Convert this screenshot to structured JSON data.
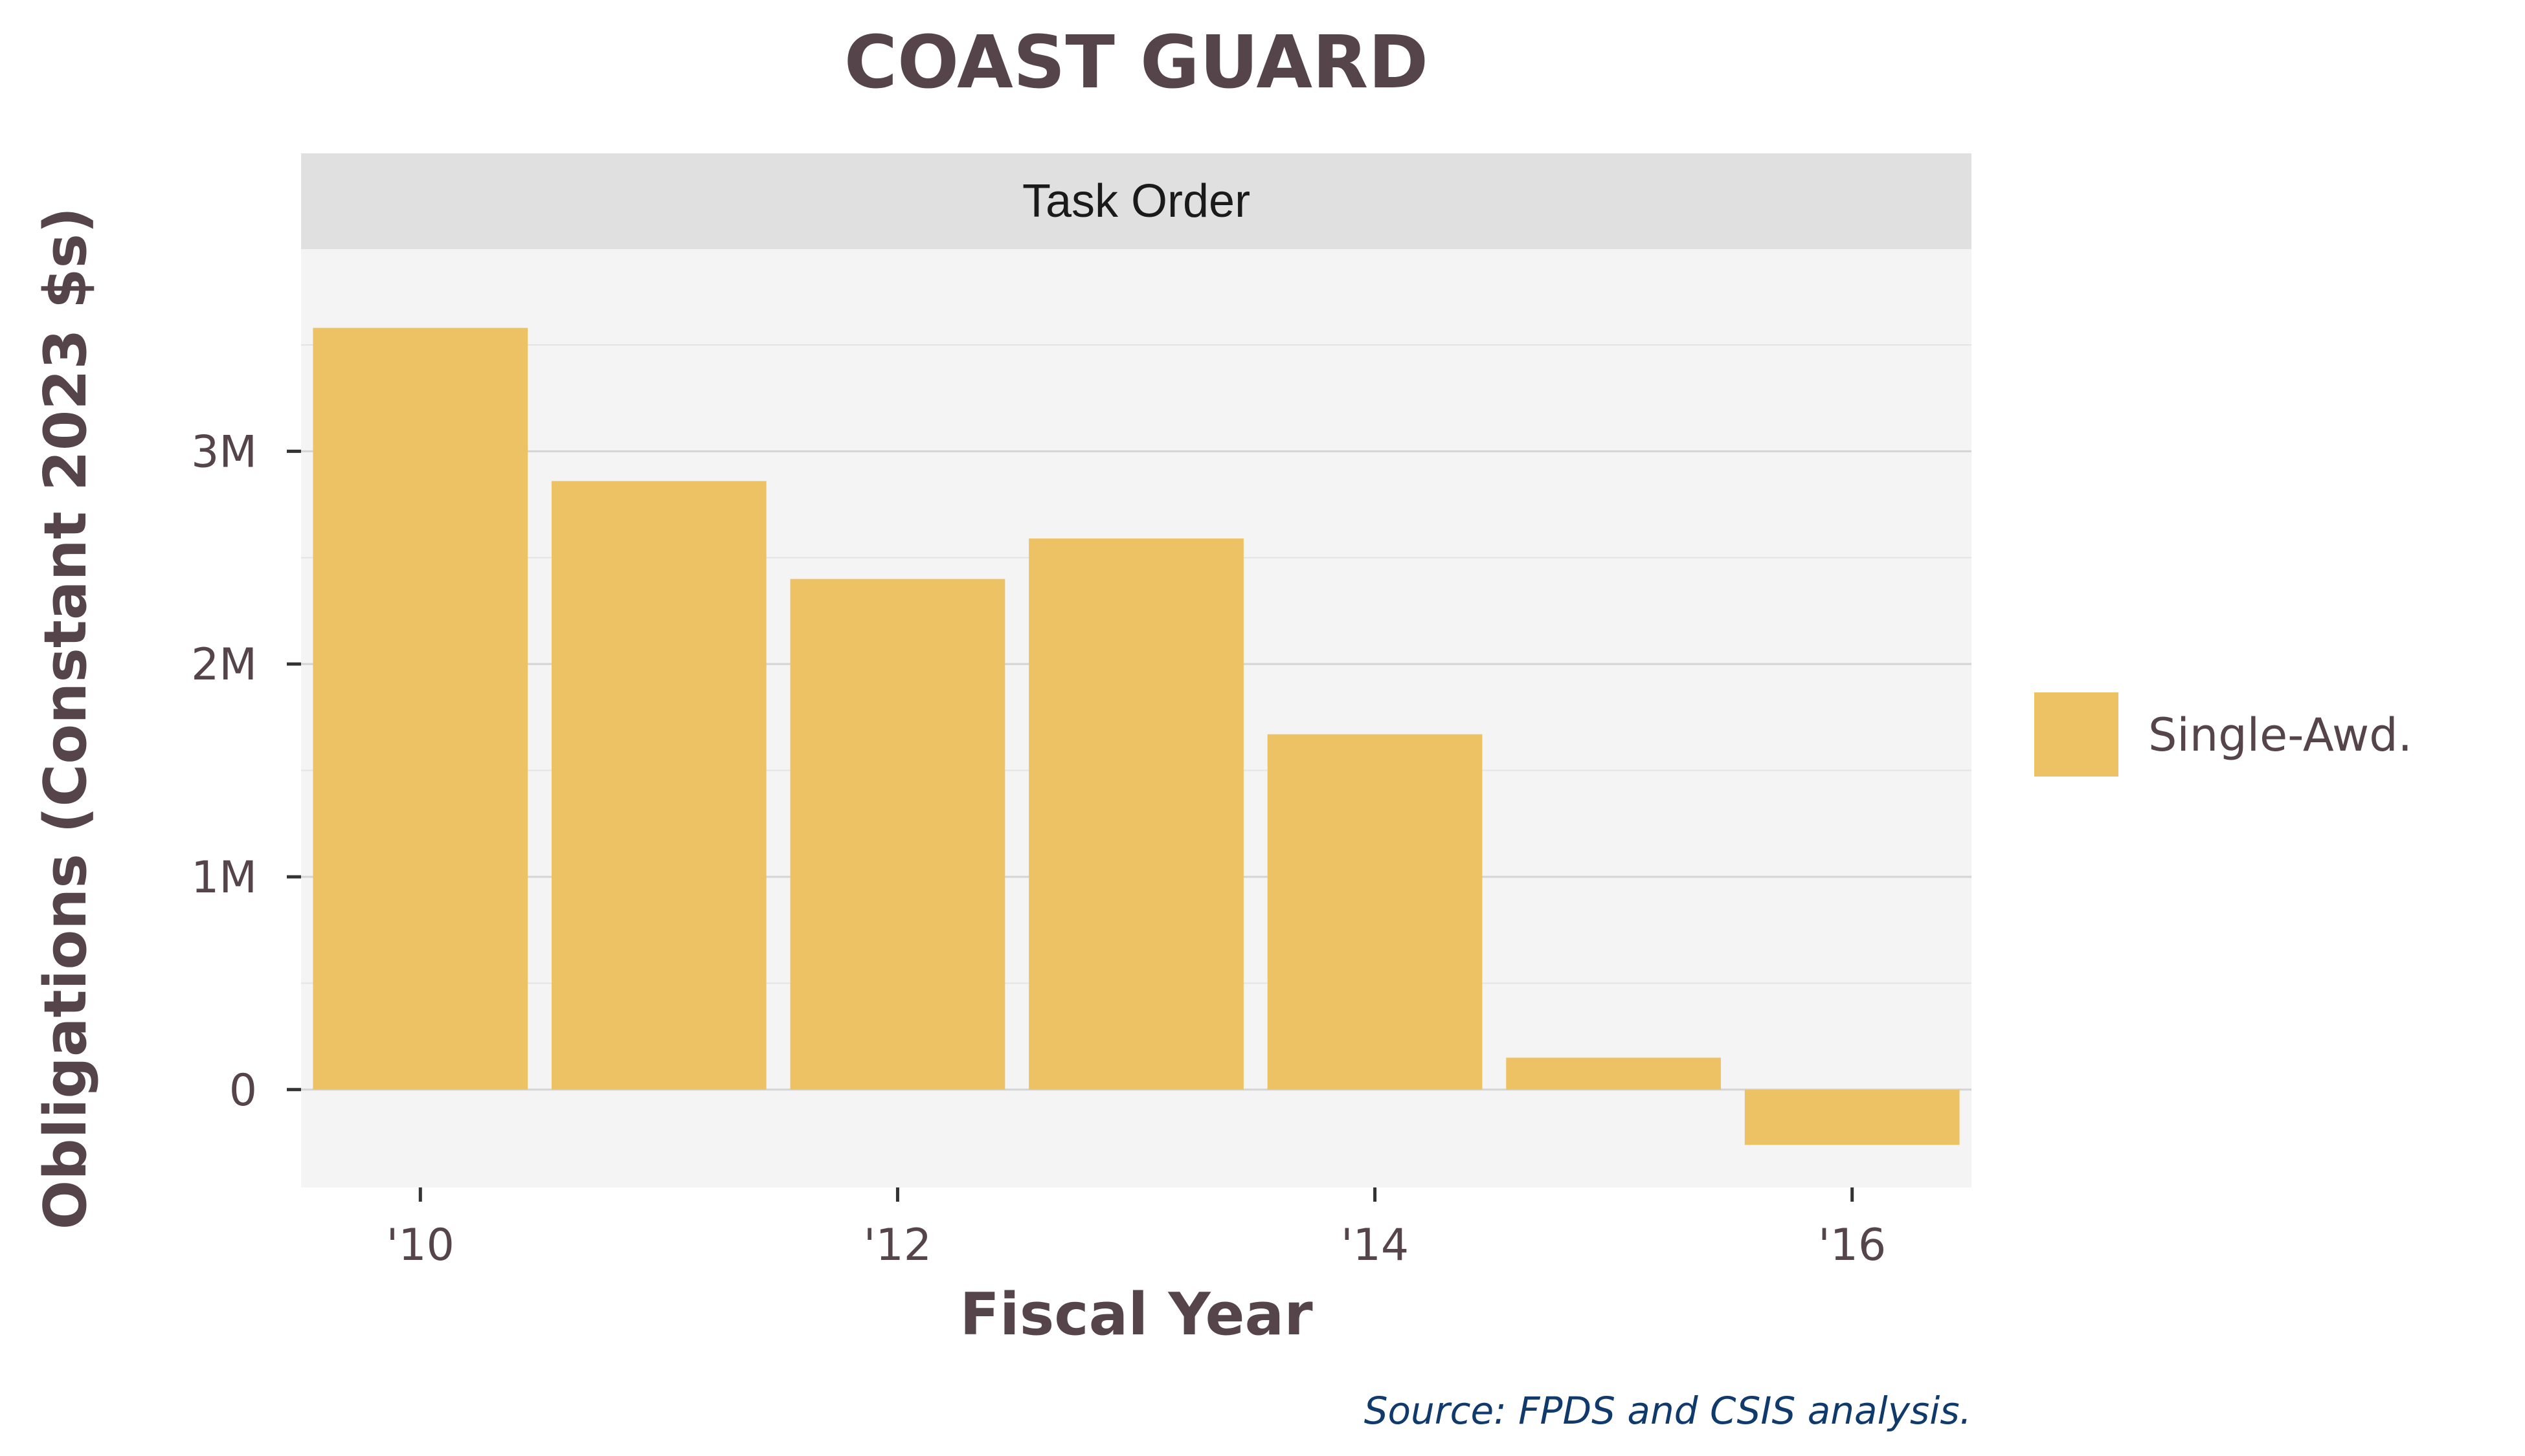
{
  "chart_data": {
    "type": "bar",
    "title": "COAST GUARD",
    "facet_label": "Task Order",
    "xlabel": "Fiscal Year",
    "ylabel": "Obligations (Constant 2023 $s)",
    "caption": "Source: FPDS and CSIS analysis.",
    "categories": [
      "2010",
      "2011",
      "2012",
      "2013",
      "2014",
      "2015",
      "2016"
    ],
    "x_ticks": [
      {
        "value": "2010",
        "label": "'10"
      },
      {
        "value": "2012",
        "label": "'12"
      },
      {
        "value": "2014",
        "label": "'14"
      },
      {
        "value": "2016",
        "label": "'16"
      }
    ],
    "y_ticks": [
      {
        "value": 0,
        "label": "0"
      },
      {
        "value": 1000000,
        "label": "1M"
      },
      {
        "value": 2000000,
        "label": "2M"
      },
      {
        "value": 3000000,
        "label": "3M"
      }
    ],
    "ylim": [
      -460000,
      3950000
    ],
    "grid": true,
    "legend_position": "right",
    "series": [
      {
        "name": "Single-Awd.",
        "color": "#EDC264",
        "values": [
          3580000,
          2860000,
          2400000,
          2590000,
          1670000,
          150000,
          -260000
        ]
      }
    ]
  }
}
